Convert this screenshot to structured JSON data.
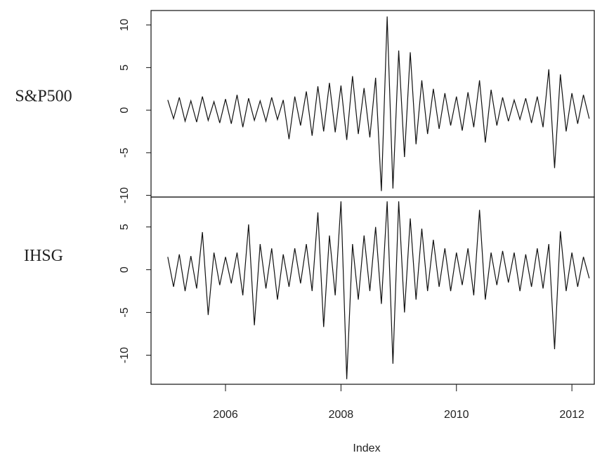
{
  "chart_data": [
    {
      "type": "line",
      "ylabel": "S&P500",
      "x": [
        2005.0,
        2005.1,
        2005.2,
        2005.3,
        2005.4,
        2005.5,
        2005.6,
        2005.7,
        2005.8,
        2005.9,
        2006.0,
        2006.1,
        2006.2,
        2006.3,
        2006.4,
        2006.5,
        2006.6,
        2006.7,
        2006.8,
        2006.9,
        2007.0,
        2007.1,
        2007.2,
        2007.3,
        2007.4,
        2007.5,
        2007.6,
        2007.7,
        2007.8,
        2007.9,
        2008.0,
        2008.1,
        2008.2,
        2008.3,
        2008.4,
        2008.5,
        2008.6,
        2008.7,
        2008.8,
        2008.9,
        2009.0,
        2009.1,
        2009.2,
        2009.3,
        2009.4,
        2009.5,
        2009.6,
        2009.7,
        2009.8,
        2009.9,
        2010.0,
        2010.1,
        2010.2,
        2010.3,
        2010.4,
        2010.5,
        2010.6,
        2010.7,
        2010.8,
        2010.9,
        2011.0,
        2011.1,
        2011.2,
        2011.3,
        2011.4,
        2011.5,
        2011.6,
        2011.7,
        2011.8,
        2011.9,
        2012.0,
        2012.1,
        2012.2,
        2012.3
      ],
      "series": [
        {
          "color": "#111111",
          "values": [
            1.2,
            -1.0,
            1.5,
            -1.3,
            1.1,
            -1.4,
            1.6,
            -1.2,
            1.0,
            -1.5,
            1.3,
            -1.6,
            1.8,
            -2.0,
            1.4,
            -1.2,
            1.1,
            -1.3,
            1.5,
            -1.1,
            1.2,
            -3.4,
            1.6,
            -1.8,
            2.2,
            -3.0,
            2.8,
            -2.5,
            3.2,
            -2.6,
            2.9,
            -3.5,
            4.0,
            -2.8,
            2.6,
            -3.2,
            3.8,
            -9.5,
            11.0,
            -9.2,
            7.0,
            -5.5,
            6.8,
            -4.0,
            3.5,
            -2.8,
            2.5,
            -2.2,
            2.0,
            -1.8,
            1.6,
            -2.4,
            2.1,
            -2.0,
            3.5,
            -3.8,
            2.4,
            -1.8,
            1.5,
            -1.3,
            1.2,
            -1.1,
            1.4,
            -1.5,
            1.6,
            -2.0,
            4.8,
            -6.8,
            4.2,
            -2.5,
            2.0,
            -1.6,
            1.8,
            -1.0
          ]
        }
      ],
      "xlim": [
        2004.71,
        2012.4
      ],
      "ylim": [
        -10.2,
        11.7
      ],
      "yticks": [
        -10,
        -5,
        0,
        5,
        10
      ]
    },
    {
      "type": "line",
      "ylabel": "IHSG",
      "xlabel": "Index",
      "x": [
        2005.0,
        2005.1,
        2005.2,
        2005.3,
        2005.4,
        2005.5,
        2005.6,
        2005.7,
        2005.8,
        2005.9,
        2006.0,
        2006.1,
        2006.2,
        2006.3,
        2006.4,
        2006.5,
        2006.6,
        2006.7,
        2006.8,
        2006.9,
        2007.0,
        2007.1,
        2007.2,
        2007.3,
        2007.4,
        2007.5,
        2007.6,
        2007.7,
        2007.8,
        2007.9,
        2008.0,
        2008.1,
        2008.2,
        2008.3,
        2008.4,
        2008.5,
        2008.6,
        2008.7,
        2008.8,
        2008.9,
        2009.0,
        2009.1,
        2009.2,
        2009.3,
        2009.4,
        2009.5,
        2009.6,
        2009.7,
        2009.8,
        2009.9,
        2010.0,
        2010.1,
        2010.2,
        2010.3,
        2010.4,
        2010.5,
        2010.6,
        2010.7,
        2010.8,
        2010.9,
        2011.0,
        2011.1,
        2011.2,
        2011.3,
        2011.4,
        2011.5,
        2011.6,
        2011.7,
        2011.8,
        2011.9,
        2012.0,
        2012.1,
        2012.2,
        2012.3
      ],
      "series": [
        {
          "color": "#111111",
          "values": [
            1.5,
            -2.0,
            1.8,
            -2.5,
            1.6,
            -2.2,
            4.4,
            -5.3,
            2.0,
            -1.8,
            1.5,
            -1.6,
            2.0,
            -3.0,
            5.3,
            -6.5,
            3.0,
            -2.2,
            2.5,
            -3.5,
            1.8,
            -2.0,
            2.5,
            -1.6,
            3.0,
            -2.5,
            6.7,
            -6.7,
            4.0,
            -3.0,
            8.0,
            -12.8,
            3.0,
            -3.5,
            4.0,
            -2.5,
            5.0,
            -4.0,
            8.0,
            -11.0,
            8.0,
            -5.0,
            6.0,
            -3.5,
            4.8,
            -2.5,
            3.5,
            -2.0,
            2.5,
            -2.5,
            2.0,
            -1.8,
            2.5,
            -3.0,
            7.0,
            -3.5,
            2.0,
            -1.8,
            2.2,
            -1.5,
            2.0,
            -2.5,
            1.8,
            -2.0,
            2.5,
            -2.2,
            3.0,
            -9.3,
            4.5,
            -2.5,
            2.0,
            -2.0,
            1.5,
            -1.0
          ]
        }
      ],
      "xlim": [
        2004.71,
        2012.4
      ],
      "xticks": [
        2006,
        2008,
        2010,
        2012
      ],
      "ylim": [
        -13.4,
        8.5
      ],
      "yticks": [
        -10,
        -5,
        0,
        5
      ]
    }
  ]
}
